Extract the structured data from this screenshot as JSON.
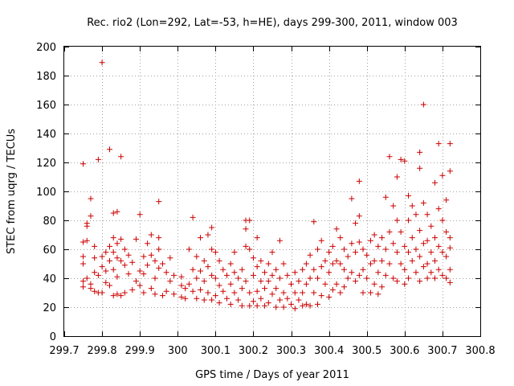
{
  "chart_data": {
    "type": "scatter",
    "title": "Rec. rio2 (Lon=292, Lat=-53, h=HE), days 299-300, 2011, window 003",
    "xlabel": "GPS time / Days of year 2011",
    "ylabel": "STEC from uqrg / TECUs",
    "xlim": [
      299.7,
      300.8
    ],
    "ylim": [
      0,
      200
    ],
    "x_ticks": [
      299.7,
      299.8,
      299.9,
      300,
      300.1,
      300.2,
      300.3,
      300.4,
      300.5,
      300.6,
      300.7,
      300.8
    ],
    "x_tick_labels": [
      "299.7",
      "299.8",
      "299.9",
      "300",
      "300.1",
      "300.2",
      "300.3",
      "300.4",
      "300.5",
      "300.6",
      "300.7",
      "300.8"
    ],
    "y_ticks": [
      0,
      20,
      40,
      60,
      80,
      100,
      120,
      140,
      160,
      180,
      200
    ],
    "y_tick_labels": [
      "0",
      "20",
      "40",
      "60",
      "80",
      "100",
      "120",
      "140",
      "160",
      "180",
      "200"
    ],
    "grid": true,
    "marker": "+",
    "color": "#cc0000",
    "points": [
      [
        299.75,
        119
      ],
      [
        299.79,
        122
      ],
      [
        299.8,
        189
      ],
      [
        299.82,
        129
      ],
      [
        299.85,
        124
      ],
      [
        299.83,
        85
      ],
      [
        299.84,
        86
      ],
      [
        299.9,
        84
      ],
      [
        299.95,
        93
      ],
      [
        299.77,
        95
      ],
      [
        299.77,
        83
      ],
      [
        299.76,
        78
      ],
      [
        299.76,
        76
      ],
      [
        299.75,
        65
      ],
      [
        299.75,
        55
      ],
      [
        299.75,
        50
      ],
      [
        299.75,
        38
      ],
      [
        299.75,
        34
      ],
      [
        299.76,
        66
      ],
      [
        299.76,
        40
      ],
      [
        299.77,
        36
      ],
      [
        299.77,
        33
      ],
      [
        299.78,
        62
      ],
      [
        299.78,
        54
      ],
      [
        299.78,
        44
      ],
      [
        299.78,
        31
      ],
      [
        299.79,
        42
      ],
      [
        299.79,
        30
      ],
      [
        299.8,
        55
      ],
      [
        299.8,
        48
      ],
      [
        299.8,
        30
      ],
      [
        299.81,
        58
      ],
      [
        299.81,
        45
      ],
      [
        299.81,
        37
      ],
      [
        299.82,
        62
      ],
      [
        299.82,
        52
      ],
      [
        299.82,
        35
      ],
      [
        299.83,
        68
      ],
      [
        299.83,
        58
      ],
      [
        299.83,
        46
      ],
      [
        299.83,
        28
      ],
      [
        299.84,
        64
      ],
      [
        299.84,
        54
      ],
      [
        299.84,
        41
      ],
      [
        299.84,
        29
      ],
      [
        299.85,
        67
      ],
      [
        299.85,
        52
      ],
      [
        299.85,
        28
      ],
      [
        299.86,
        60
      ],
      [
        299.86,
        49
      ],
      [
        299.86,
        30
      ],
      [
        299.87,
        56
      ],
      [
        299.87,
        43
      ],
      [
        299.88,
        51
      ],
      [
        299.88,
        32
      ],
      [
        299.89,
        67
      ],
      [
        299.89,
        38
      ],
      [
        299.9,
        45
      ],
      [
        299.9,
        35
      ],
      [
        299.91,
        55
      ],
      [
        299.91,
        43
      ],
      [
        299.91,
        30
      ],
      [
        299.92,
        64
      ],
      [
        299.92,
        49
      ],
      [
        299.93,
        70
      ],
      [
        299.93,
        56
      ],
      [
        299.93,
        33
      ],
      [
        299.94,
        52
      ],
      [
        299.94,
        40
      ],
      [
        299.94,
        29
      ],
      [
        299.95,
        68
      ],
      [
        299.95,
        60
      ],
      [
        299.95,
        47
      ],
      [
        299.96,
        50
      ],
      [
        299.96,
        28
      ],
      [
        299.97,
        44
      ],
      [
        299.97,
        31
      ],
      [
        299.98,
        54
      ],
      [
        299.98,
        38
      ],
      [
        299.99,
        42
      ],
      [
        299.99,
        29
      ],
      [
        300.01,
        41
      ],
      [
        300.01,
        35
      ],
      [
        300.01,
        27
      ],
      [
        300.02,
        33
      ],
      [
        300.02,
        26
      ],
      [
        300.03,
        36
      ],
      [
        300.03,
        60
      ],
      [
        300.04,
        82
      ],
      [
        300.04,
        46
      ],
      [
        300.04,
        31
      ],
      [
        300.05,
        55
      ],
      [
        300.05,
        40
      ],
      [
        300.05,
        26
      ],
      [
        300.06,
        68
      ],
      [
        300.06,
        45
      ],
      [
        300.06,
        32
      ],
      [
        300.07,
        52
      ],
      [
        300.07,
        38
      ],
      [
        300.07,
        25
      ],
      [
        300.08,
        70
      ],
      [
        300.08,
        48
      ],
      [
        300.08,
        30
      ],
      [
        300.09,
        75
      ],
      [
        300.09,
        60
      ],
      [
        300.09,
        42
      ],
      [
        300.09,
        25
      ],
      [
        300.1,
        58
      ],
      [
        300.1,
        40
      ],
      [
        300.1,
        28
      ],
      [
        300.11,
        52
      ],
      [
        300.11,
        35
      ],
      [
        300.11,
        23
      ],
      [
        300.12,
        46
      ],
      [
        300.12,
        31
      ],
      [
        300.13,
        42
      ],
      [
        300.13,
        26
      ],
      [
        300.14,
        50
      ],
      [
        300.14,
        36
      ],
      [
        300.14,
        22
      ],
      [
        300.15,
        58
      ],
      [
        300.15,
        44
      ],
      [
        300.15,
        30
      ],
      [
        300.16,
        40
      ],
      [
        300.16,
        25
      ],
      [
        300.17,
        46
      ],
      [
        300.17,
        33
      ],
      [
        300.17,
        21
      ],
      [
        300.18,
        80
      ],
      [
        300.18,
        74
      ],
      [
        300.18,
        62
      ],
      [
        300.18,
        38
      ],
      [
        300.19,
        80
      ],
      [
        300.19,
        60
      ],
      [
        300.19,
        30
      ],
      [
        300.19,
        21
      ],
      [
        300.2,
        54
      ],
      [
        300.2,
        42
      ],
      [
        300.2,
        24
      ],
      [
        300.21,
        68
      ],
      [
        300.21,
        48
      ],
      [
        300.21,
        31
      ],
      [
        300.21,
        21
      ],
      [
        300.22,
        52
      ],
      [
        300.22,
        38
      ],
      [
        300.22,
        26
      ],
      [
        300.23,
        44
      ],
      [
        300.23,
        33
      ],
      [
        300.23,
        21
      ],
      [
        300.24,
        50
      ],
      [
        300.24,
        38
      ],
      [
        300.24,
        23
      ],
      [
        300.25,
        58
      ],
      [
        300.25,
        42
      ],
      [
        300.25,
        29
      ],
      [
        300.26,
        46
      ],
      [
        300.26,
        33
      ],
      [
        300.26,
        20
      ],
      [
        300.27,
        66
      ],
      [
        300.27,
        40
      ],
      [
        300.27,
        25
      ],
      [
        300.28,
        50
      ],
      [
        300.28,
        30
      ],
      [
        300.28,
        20
      ],
      [
        300.29,
        42
      ],
      [
        300.29,
        26
      ],
      [
        300.3,
        36
      ],
      [
        300.3,
        22
      ],
      [
        300.31,
        44
      ],
      [
        300.31,
        30
      ],
      [
        300.31,
        19
      ],
      [
        300.32,
        38
      ],
      [
        300.32,
        25
      ],
      [
        300.33,
        46
      ],
      [
        300.33,
        30
      ],
      [
        300.33,
        21
      ],
      [
        300.34,
        50
      ],
      [
        300.34,
        36
      ],
      [
        300.34,
        22
      ],
      [
        300.35,
        56
      ],
      [
        300.35,
        40
      ],
      [
        300.35,
        21
      ],
      [
        300.36,
        79
      ],
      [
        300.36,
        46
      ],
      [
        300.36,
        30
      ],
      [
        300.37,
        60
      ],
      [
        300.37,
        40
      ],
      [
        300.37,
        22
      ],
      [
        300.38,
        66
      ],
      [
        300.38,
        48
      ],
      [
        300.38,
        28
      ],
      [
        300.39,
        52
      ],
      [
        300.39,
        36
      ],
      [
        300.4,
        58
      ],
      [
        300.4,
        44
      ],
      [
        300.4,
        27
      ],
      [
        300.41,
        62
      ],
      [
        300.41,
        50
      ],
      [
        300.41,
        32
      ],
      [
        300.42,
        74
      ],
      [
        300.42,
        52
      ],
      [
        300.42,
        36
      ],
      [
        300.43,
        68
      ],
      [
        300.43,
        50
      ],
      [
        300.43,
        30
      ],
      [
        300.44,
        60
      ],
      [
        300.44,
        46
      ],
      [
        300.44,
        34
      ],
      [
        300.45,
        55
      ],
      [
        300.45,
        40
      ],
      [
        300.46,
        95
      ],
      [
        300.46,
        64
      ],
      [
        300.46,
        44
      ],
      [
        300.47,
        78
      ],
      [
        300.47,
        58
      ],
      [
        300.47,
        38
      ],
      [
        300.48,
        107
      ],
      [
        300.48,
        83
      ],
      [
        300.48,
        65
      ],
      [
        300.48,
        42
      ],
      [
        300.49,
        60
      ],
      [
        300.49,
        46
      ],
      [
        300.49,
        30
      ],
      [
        300.5,
        56
      ],
      [
        300.5,
        40
      ],
      [
        300.51,
        66
      ],
      [
        300.51,
        50
      ],
      [
        300.51,
        30
      ],
      [
        300.52,
        70
      ],
      [
        300.52,
        52
      ],
      [
        300.52,
        36
      ],
      [
        300.53,
        62
      ],
      [
        300.53,
        44
      ],
      [
        300.53,
        29
      ],
      [
        300.54,
        68
      ],
      [
        300.54,
        52
      ],
      [
        300.54,
        34
      ],
      [
        300.55,
        96
      ],
      [
        300.55,
        60
      ],
      [
        300.55,
        42
      ],
      [
        300.56,
        124
      ],
      [
        300.56,
        72
      ],
      [
        300.56,
        50
      ],
      [
        300.57,
        90
      ],
      [
        300.57,
        64
      ],
      [
        300.57,
        40
      ],
      [
        300.58,
        110
      ],
      [
        300.58,
        80
      ],
      [
        300.58,
        58
      ],
      [
        300.58,
        38
      ],
      [
        300.59,
        122
      ],
      [
        300.59,
        72
      ],
      [
        300.59,
        50
      ],
      [
        300.6,
        121
      ],
      [
        300.6,
        62
      ],
      [
        300.6,
        46
      ],
      [
        300.6,
        36
      ],
      [
        300.61,
        97
      ],
      [
        300.61,
        80
      ],
      [
        300.61,
        58
      ],
      [
        300.61,
        40
      ],
      [
        300.62,
        90
      ],
      [
        300.62,
        68
      ],
      [
        300.62,
        52
      ],
      [
        300.63,
        84
      ],
      [
        300.63,
        60
      ],
      [
        300.63,
        44
      ],
      [
        300.64,
        127
      ],
      [
        300.64,
        116
      ],
      [
        300.64,
        73
      ],
      [
        300.64,
        55
      ],
      [
        300.64,
        38
      ],
      [
        300.65,
        160
      ],
      [
        300.65,
        92
      ],
      [
        300.65,
        64
      ],
      [
        300.65,
        48
      ],
      [
        300.66,
        84
      ],
      [
        300.66,
        66
      ],
      [
        300.66,
        50
      ],
      [
        300.66,
        40
      ],
      [
        300.67,
        76
      ],
      [
        300.67,
        58
      ],
      [
        300.67,
        44
      ],
      [
        300.68,
        106
      ],
      [
        300.68,
        68
      ],
      [
        300.68,
        52
      ],
      [
        300.68,
        40
      ],
      [
        300.69,
        133
      ],
      [
        300.69,
        88
      ],
      [
        300.69,
        62
      ],
      [
        300.69,
        46
      ],
      [
        300.7,
        111
      ],
      [
        300.7,
        80
      ],
      [
        300.7,
        58
      ],
      [
        300.7,
        42
      ],
      [
        300.71,
        94
      ],
      [
        300.71,
        72
      ],
      [
        300.71,
        55
      ],
      [
        300.71,
        40
      ],
      [
        300.72,
        133
      ],
      [
        300.72,
        114
      ],
      [
        300.72,
        68
      ],
      [
        300.72,
        61
      ],
      [
        300.72,
        46
      ],
      [
        300.72,
        37
      ]
    ]
  }
}
